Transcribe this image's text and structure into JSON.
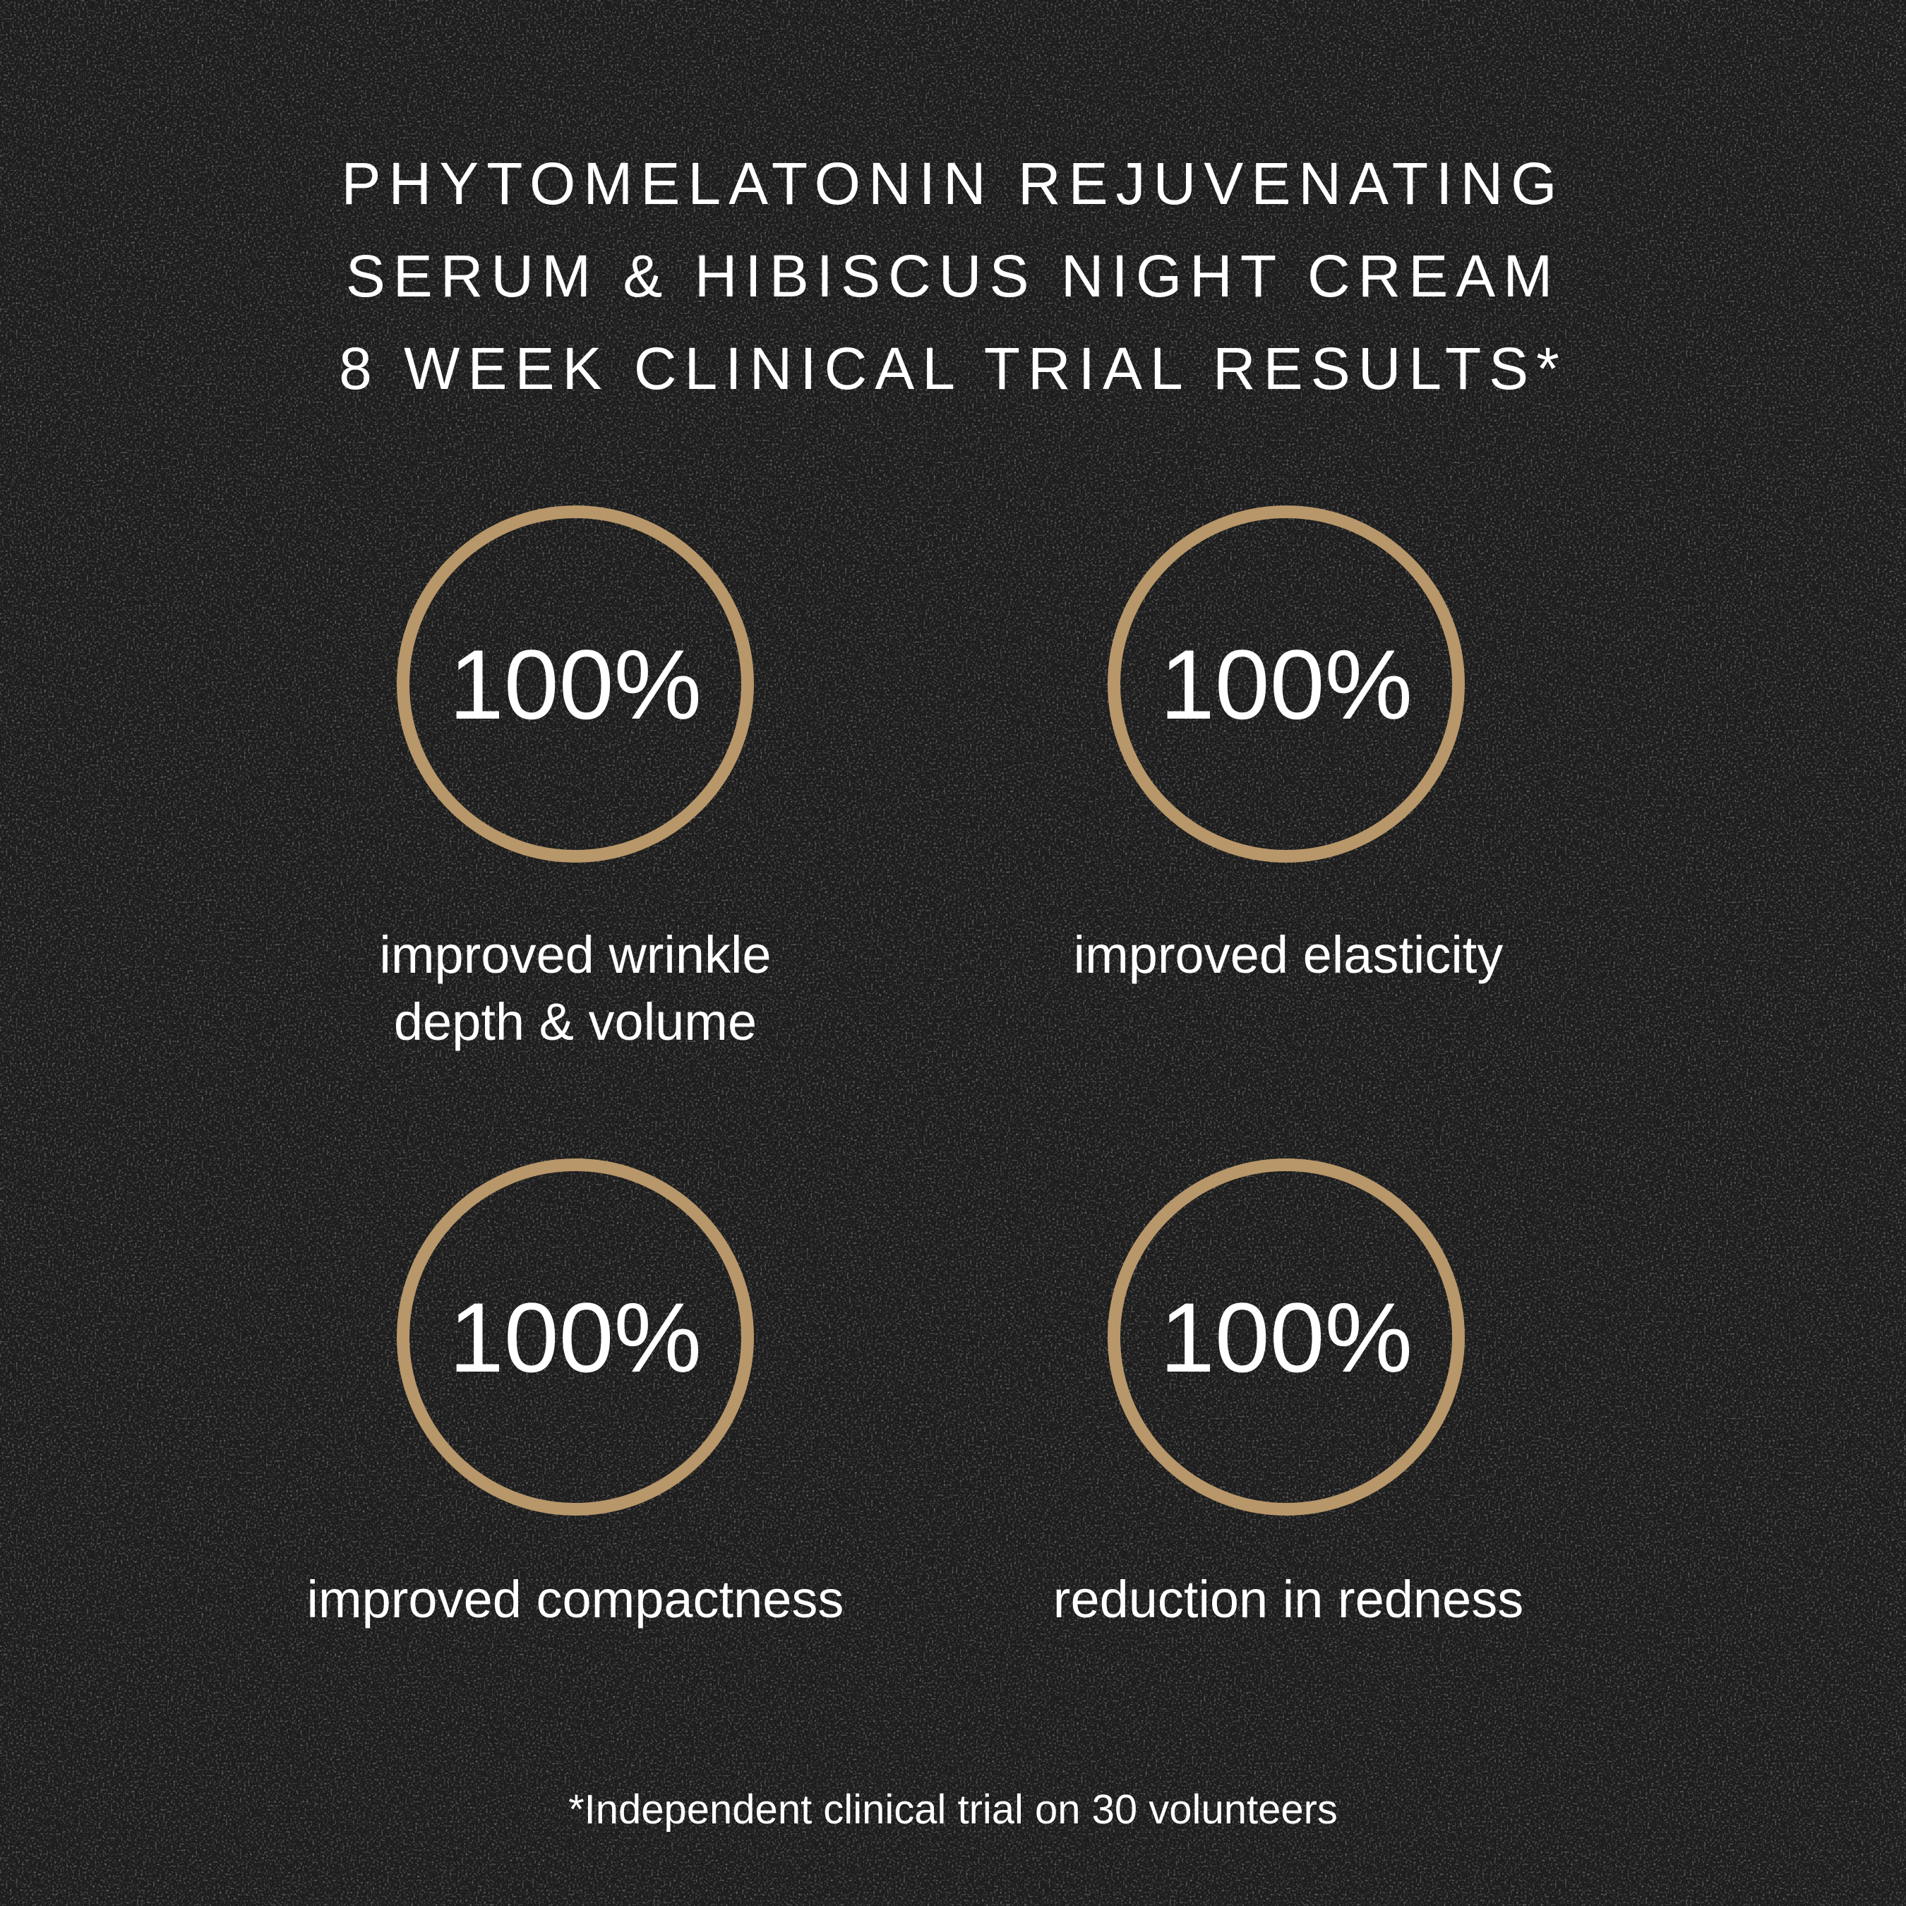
{
  "title": {
    "lines": [
      "PHYTOMELATONIN REJUVENATING",
      "SERUM & HIBISCUS NIGHT CREAM",
      "8 WEEK CLINICAL TRIAL RESULTS*"
    ]
  },
  "colors": {
    "ring": "#b8976a",
    "background": "#1d1d1d",
    "text": "#ffffff"
  },
  "stats": [
    {
      "value": "100%",
      "label_lines": [
        "improved wrinkle",
        "depth & volume"
      ]
    },
    {
      "value": "100%",
      "label_lines": [
        "improved elasticity"
      ]
    },
    {
      "value": "100%",
      "label_lines": [
        "improved compactness"
      ]
    },
    {
      "value": "100%",
      "label_lines": [
        "reduction in redness"
      ]
    }
  ],
  "footnote": "*Independent clinical trial on 30 volunteers"
}
